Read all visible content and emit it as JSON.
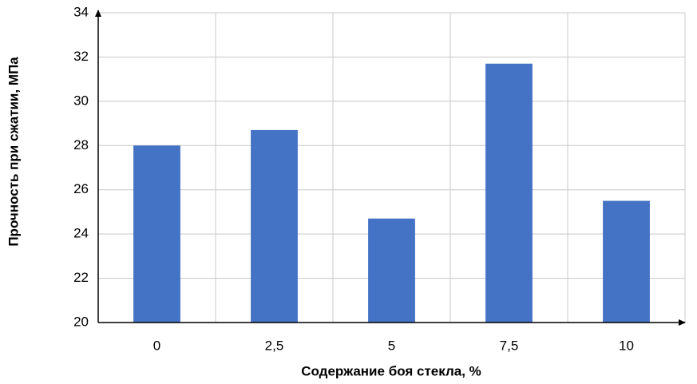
{
  "chart_data": {
    "type": "bar",
    "x_label": "Содержание боя стекла, %",
    "y_label": "Прочность при сжатии, МПа",
    "categories": [
      "0",
      "2,5",
      "5",
      "7,5",
      "10"
    ],
    "values": [
      28,
      28.7,
      24.7,
      31.7,
      25.5
    ],
    "color": "#4472c4",
    "ylim": [
      20,
      34
    ],
    "yticks": [
      20,
      22,
      24,
      26,
      28,
      30,
      32,
      34
    ],
    "grid": true
  }
}
